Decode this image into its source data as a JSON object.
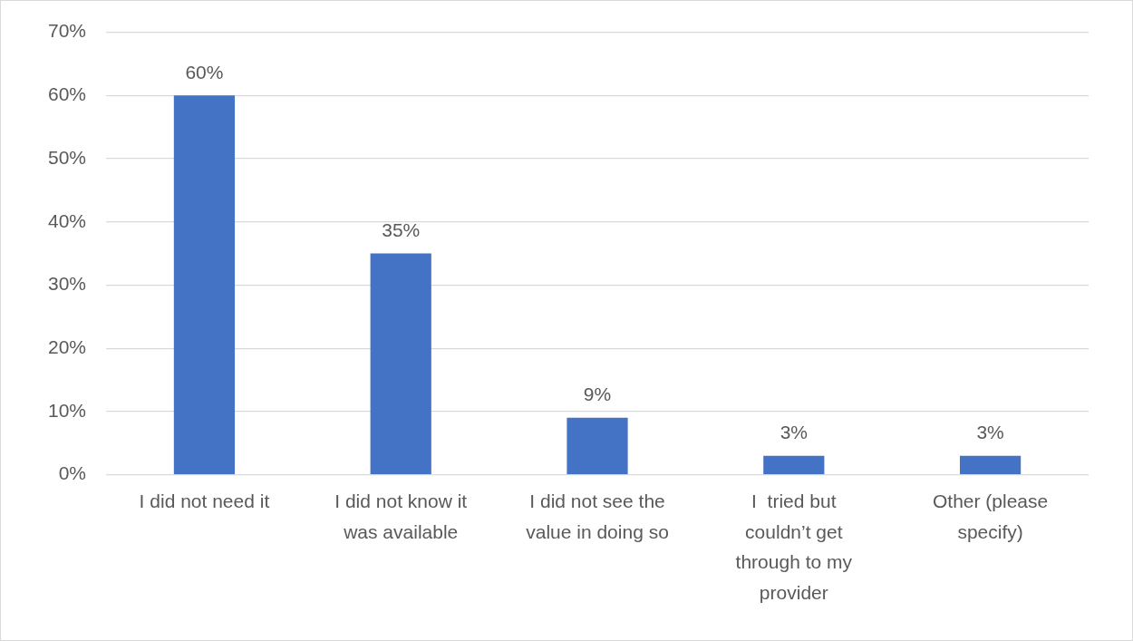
{
  "chart_data": {
    "type": "bar",
    "categories": [
      "I did not need it",
      "I did not know it was available",
      "I did not see the value in doing so",
      "I  tried but couldn’t get through to my provider",
      "Other (please specify)"
    ],
    "values": [
      60,
      35,
      9,
      3,
      3
    ],
    "value_labels": [
      "60%",
      "35%",
      "9%",
      "3%",
      "3%"
    ],
    "color": "#4472c4",
    "ylim": [
      0,
      70
    ],
    "yticks": [
      {
        "value": 0,
        "label": "0%"
      },
      {
        "value": 10,
        "label": "10%"
      },
      {
        "value": 20,
        "label": "20%"
      },
      {
        "value": 30,
        "label": "30%"
      },
      {
        "value": 40,
        "label": "40%"
      },
      {
        "value": 50,
        "label": "50%"
      },
      {
        "value": 60,
        "label": "60%"
      },
      {
        "value": 70,
        "label": "70%"
      }
    ],
    "grid": true,
    "data_labels": true
  }
}
